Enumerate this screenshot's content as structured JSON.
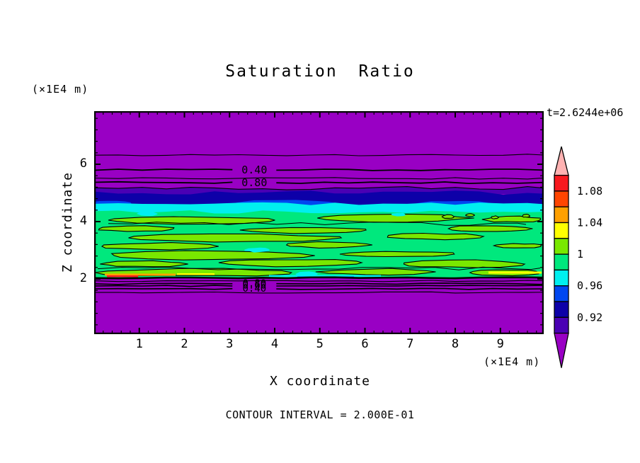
{
  "chart_data": {
    "type": "heatmap",
    "subtype": "filled-contour-plot",
    "title": "Saturation Ratio",
    "xlabel": "X coordinate",
    "zlabel": "Z coordinate",
    "annotations": {
      "time": "t=2.6244e+06",
      "z_axis_unit": "(×1E4 m)",
      "x_axis_unit": "(×1E4 m)",
      "contour_interval": "CONTOUR INTERVAL = 2.000E-01"
    },
    "xlim": [
      0,
      9.96
    ],
    "zlim": [
      0,
      7.85
    ],
    "x_ticks": [
      "1",
      "2",
      "3",
      "4",
      "5",
      "6",
      "7",
      "8",
      "9"
    ],
    "x_tick_values": [
      1,
      2,
      3,
      4,
      5,
      6,
      7,
      8,
      9
    ],
    "x_minor_step": 0.2,
    "z_ticks": [
      "2",
      "4",
      "6"
    ],
    "z_tick_values": [
      2,
      4,
      6
    ],
    "z_minor_step": 0.4,
    "grid": false,
    "colorbar": {
      "position": "right",
      "boundaries": [
        0.9,
        0.92,
        0.94,
        0.96,
        0.98,
        1.0,
        1.02,
        1.04,
        1.06,
        1.08,
        1.1
      ],
      "segment_colors": [
        "#4A00B4",
        "#0D00A8",
        "#0047F0",
        "#00EFEF",
        "#00E87D",
        "#79E800",
        "#FFFF00",
        "#FFA000",
        "#FF4500",
        "#F8191F"
      ],
      "under_color": "#9900C4",
      "over_color": "#FFB2B2",
      "labels": [
        {
          "text": "1.08",
          "value": 1.08
        },
        {
          "text": "1.04",
          "value": 1.04
        },
        {
          "text": "1",
          "value": 1.0
        },
        {
          "text": "0.96",
          "value": 0.96
        },
        {
          "text": "0.92",
          "value": 0.92
        }
      ]
    },
    "upper_contour_lines": [
      {
        "z": 6.32,
        "label": null
      },
      {
        "z": 5.8,
        "label": "0.40"
      },
      {
        "z": 5.51,
        "label": null
      },
      {
        "z": 5.36,
        "label": "0.80"
      }
    ],
    "lower_contour_lines": [
      {
        "z": 1.93,
        "label": null
      },
      {
        "z": 1.83,
        "label": "0.80"
      },
      {
        "z": 1.76,
        "label": "0.60"
      },
      {
        "z": 1.65,
        "label": "0.40"
      },
      {
        "z": 1.53,
        "label": null
      }
    ],
    "contour_label_x": 3.55,
    "layers": [
      {
        "name": "upper-undersaturated-zone",
        "color": "#9900C4",
        "z_range": [
          5.17,
          7.85
        ],
        "value_range": "< 0.90"
      },
      {
        "name": "indigo-band",
        "color": "#4A00B4",
        "z_range": [
          4.9,
          5.17
        ],
        "value_range": "0.90-0.92"
      },
      {
        "name": "navy-band",
        "color": "#0D00A8",
        "z_range": [
          4.5,
          5.01
        ],
        "value_range": "0.92-0.94"
      },
      {
        "name": "cyan-band",
        "color": "#00EFEF",
        "z_range": [
          4.23,
          4.62
        ],
        "value_range": "0.96-0.98"
      },
      {
        "name": "green-core",
        "color": "#00E87D",
        "z_range": [
          2.05,
          4.35
        ],
        "value_range": "0.98-1.00"
      },
      {
        "name": "lower-undersaturated-zone",
        "color": "#9900C4",
        "z_range": [
          0,
          2.05
        ],
        "value_range": "< 0.90"
      }
    ],
    "patch_values": {
      "blue_patches": "0.94-0.96",
      "chartreuse_patches": "1.00-1.02",
      "yellow_streaks": "1.02-1.04",
      "orange_streaks": "1.04-1.06",
      "red_streaks": "1.08-1.10"
    }
  }
}
